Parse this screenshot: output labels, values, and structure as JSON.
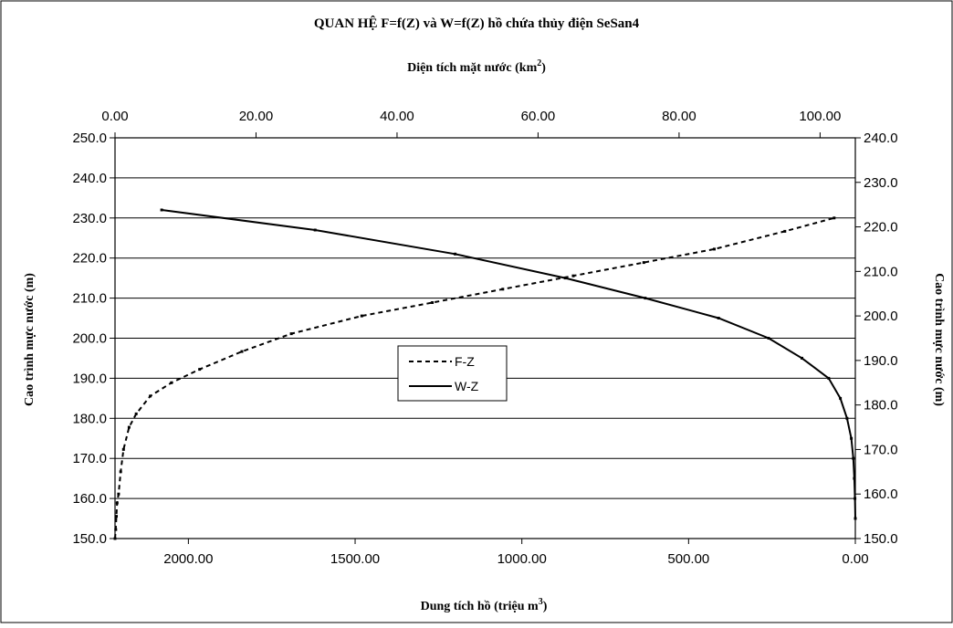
{
  "chart_data": {
    "type": "line",
    "title": "QUAN HỆ F=f(Z) và W=f(Z) hồ chứa thủy điện SeSan4",
    "top_axis": {
      "label": "Diện tích mặt nước (km",
      "label_sup": "2",
      "label_end": ")",
      "range": [
        0,
        105
      ],
      "ticks": [
        "0.00",
        "20.00",
        "40.00",
        "60.00",
        "80.00",
        "100.00"
      ],
      "tick_values": [
        0,
        20,
        40,
        60,
        80,
        100
      ]
    },
    "bottom_axis": {
      "label": "Dung tích hồ (triệu m",
      "label_sup": "3",
      "label_end": ")",
      "range": [
        2220,
        0
      ],
      "reversed": true,
      "ticks": [
        "2000.00",
        "1500.00",
        "1000.00",
        "500.00",
        "0.00"
      ],
      "tick_values": [
        2000,
        1500,
        1000,
        500,
        0
      ]
    },
    "left_axis": {
      "label": "Cao trình mực nước (m)",
      "range": [
        150,
        250
      ],
      "ticks": [
        "150.0",
        "160.0",
        "170.0",
        "180.0",
        "190.0",
        "200.0",
        "210.0",
        "220.0",
        "230.0",
        "240.0",
        "250.0"
      ],
      "tick_values": [
        150,
        160,
        170,
        180,
        190,
        200,
        210,
        220,
        230,
        240,
        250
      ]
    },
    "right_axis": {
      "label": "Cao trình mực nước (m)",
      "range": [
        150,
        240
      ],
      "ticks": [
        "150.0",
        "160.0",
        "170.0",
        "180.0",
        "190.0",
        "200.0",
        "210.0",
        "220.0",
        "230.0",
        "240.0"
      ],
      "tick_values": [
        150,
        160,
        170,
        180,
        190,
        200,
        210,
        220,
        230,
        240
      ]
    },
    "grid": true,
    "legend_position": "center",
    "series": [
      {
        "name": "F-Z",
        "style": "dashed",
        "x_axis": "top",
        "y_axis": "right",
        "points": [
          [
            0.0,
            150
          ],
          [
            0.1,
            152
          ],
          [
            0.2,
            155
          ],
          [
            0.3,
            158
          ],
          [
            0.5,
            160
          ],
          [
            0.8,
            165
          ],
          [
            1.2,
            170
          ],
          [
            2.0,
            175
          ],
          [
            3.0,
            178
          ],
          [
            5.0,
            182
          ],
          [
            8.0,
            185
          ],
          [
            12.0,
            188
          ],
          [
            18.0,
            192
          ],
          [
            25.0,
            196
          ],
          [
            35.0,
            200
          ],
          [
            45.0,
            203
          ],
          [
            55.0,
            206
          ],
          [
            65.0,
            209
          ],
          [
            75.0,
            212
          ],
          [
            85.0,
            215
          ],
          [
            95.0,
            219
          ],
          [
            102.0,
            222
          ]
        ]
      },
      {
        "name": "W-Z",
        "style": "solid",
        "x_axis": "bottom",
        "y_axis": "left",
        "points": [
          [
            0,
            155
          ],
          [
            1,
            160
          ],
          [
            3,
            165
          ],
          [
            6,
            170
          ],
          [
            12,
            175
          ],
          [
            25,
            180
          ],
          [
            45,
            185
          ],
          [
            80,
            190
          ],
          [
            160,
            195
          ],
          [
            260,
            200
          ],
          [
            410,
            205
          ],
          [
            630,
            210
          ],
          [
            870,
            215
          ],
          [
            1200,
            221
          ],
          [
            1620,
            227
          ],
          [
            2080,
            232
          ]
        ]
      }
    ]
  }
}
